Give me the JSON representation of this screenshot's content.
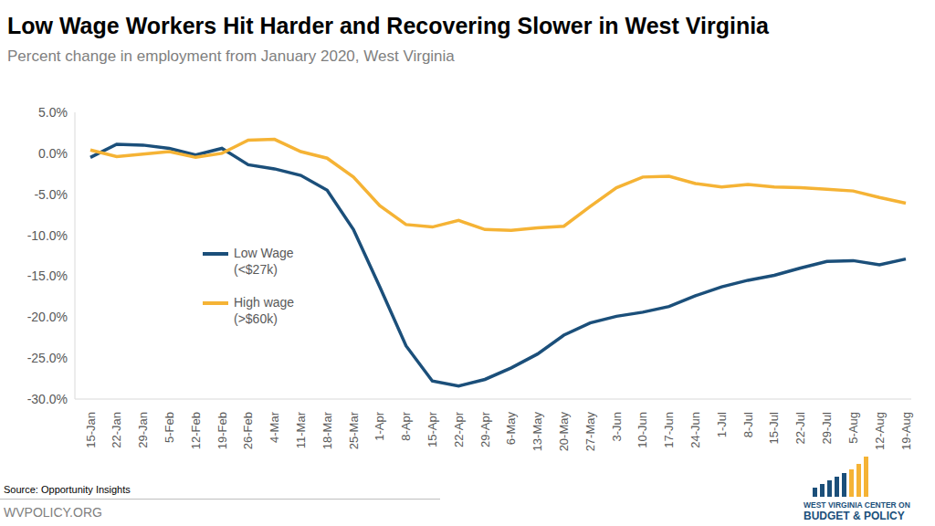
{
  "chart_data": {
    "type": "line",
    "title": "Low Wage Workers Hit Harder and Recovering Slower in West Virginia",
    "subtitle": "Percent change in employment from January 2020, West Virginia",
    "x": [
      "15-Jan",
      "22-Jan",
      "29-Jan",
      "5-Feb",
      "12-Feb",
      "19-Feb",
      "26-Feb",
      "4-Mar",
      "11-Mar",
      "18-Mar",
      "25-Mar",
      "1-Apr",
      "8-Apr",
      "15-Apr",
      "22-Apr",
      "29-Apr",
      "6-May",
      "13-May",
      "20-May",
      "27-May",
      "3-Jun",
      "10-Jun",
      "17-Jun",
      "24-Jun",
      "1-Jul",
      "8-Jul",
      "15-Jul",
      "22-Jul",
      "29-Jul",
      "5-Aug",
      "12-Aug",
      "19-Aug"
    ],
    "series": [
      {
        "name": "Low Wage (<$27k)",
        "color": "#1b4f7a",
        "values": [
          -0.5,
          1.1,
          1.0,
          0.6,
          -0.2,
          0.6,
          -1.4,
          -1.9,
          -2.7,
          -4.5,
          -9.3,
          -16.3,
          -23.5,
          -27.8,
          -28.4,
          -27.6,
          -26.2,
          -24.5,
          -22.2,
          -20.7,
          -19.9,
          -19.4,
          -18.7,
          -17.4,
          -16.3,
          -15.5,
          -14.9,
          -14.0,
          -13.2,
          -13.1,
          -13.6,
          -12.9
        ]
      },
      {
        "name": "High wage (>$60k)",
        "color": "#f5b335",
        "values": [
          0.4,
          -0.4,
          -0.1,
          0.2,
          -0.5,
          0.0,
          1.6,
          1.7,
          0.2,
          -0.6,
          -2.9,
          -6.4,
          -8.7,
          -9.0,
          -8.2,
          -9.3,
          -9.4,
          -9.1,
          -8.9,
          -6.5,
          -4.2,
          -2.9,
          -2.8,
          -3.7,
          -4.1,
          -3.8,
          -4.1,
          -4.2,
          -4.4,
          -4.6,
          -5.4,
          -6.1
        ]
      }
    ],
    "ylim": [
      -30,
      5
    ],
    "yticks": [
      {
        "value": -30,
        "label": "-30.0%"
      },
      {
        "value": -25,
        "label": "-25.0%"
      },
      {
        "value": -20,
        "label": "-20.0%"
      },
      {
        "value": -15,
        "label": "-15.0%"
      },
      {
        "value": -10,
        "label": "-10.0%"
      },
      {
        "value": -5,
        "label": "-5.0%"
      },
      {
        "value": 0,
        "label": "0.0%"
      },
      {
        "value": 5,
        "label": "5.0%"
      }
    ],
    "grid": false,
    "legend": "left",
    "source": "Source: Opportunity Insights",
    "footer": "WVPOLICY.ORG",
    "logo": [
      "WEST VIRGINIA CENTER ON",
      "BUDGET & POLICY"
    ]
  }
}
